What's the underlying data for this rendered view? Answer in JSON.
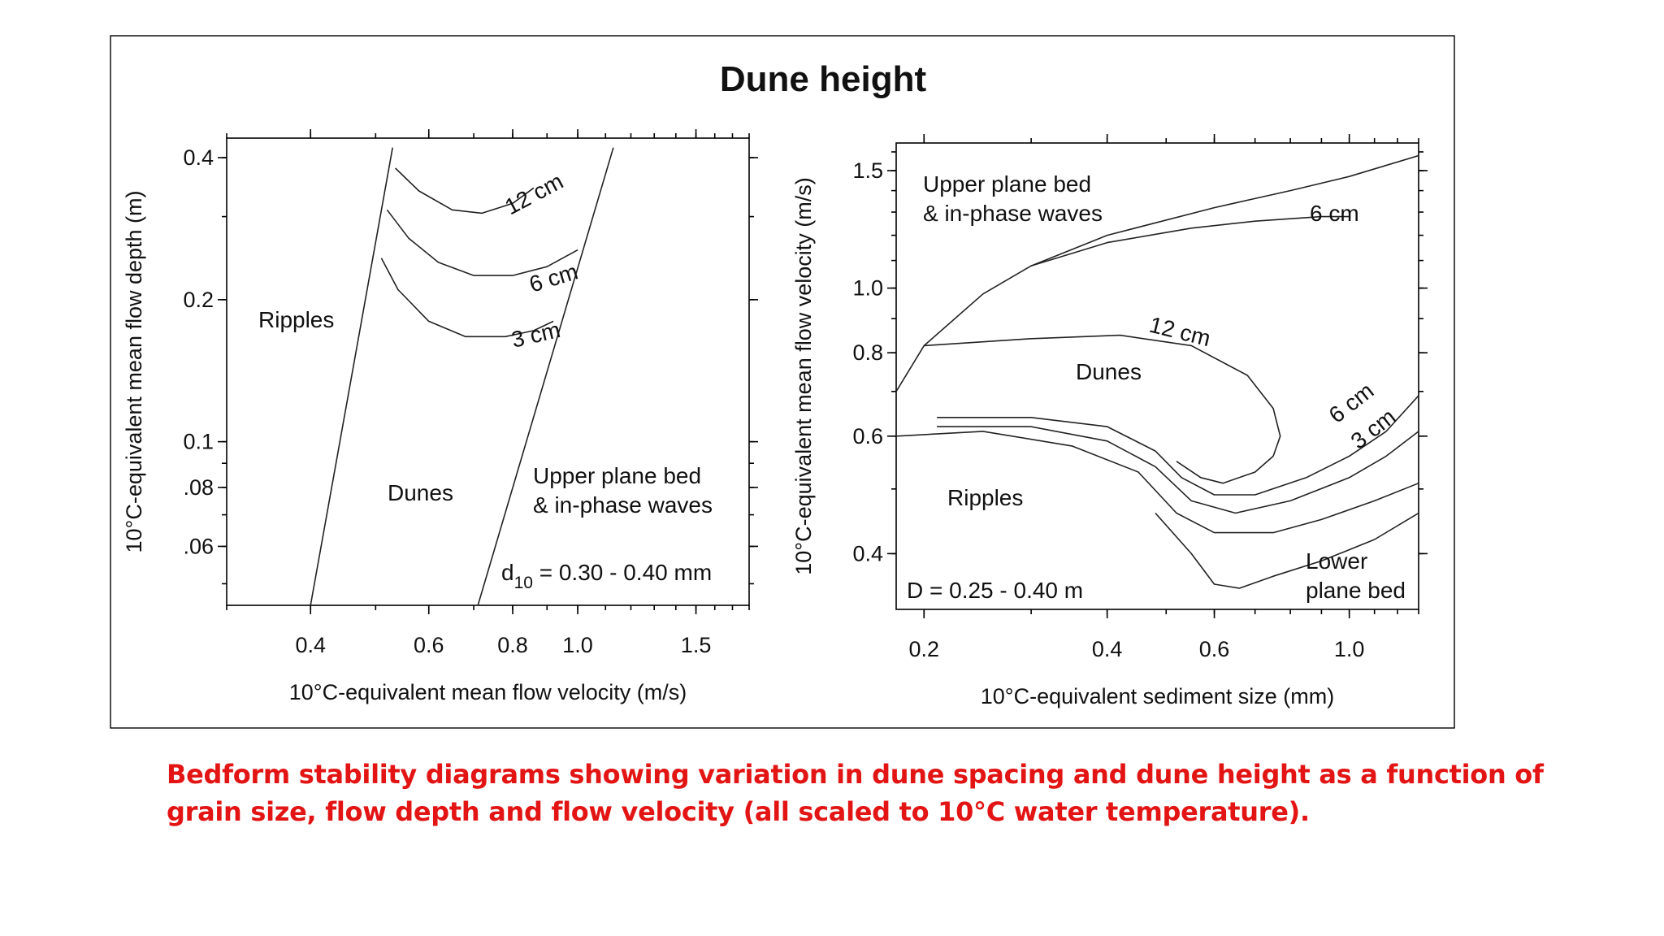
{
  "figure": {
    "title": "Dune height",
    "caption": "Bedform stability diagrams showing variation in dune spacing and dune height as a function of grain size, flow depth and flow velocity (all scaled to 10°C water temperature)."
  },
  "chart_data": [
    {
      "type": "line",
      "scale": "log-log",
      "xlabel": "10°C-equivalent mean flow velocity (m/s)",
      "ylabel": "10°C-equivalent mean flow depth (m)",
      "xlim": [
        0.3,
        1.8
      ],
      "ylim": [
        0.045,
        0.44
      ],
      "xticks": [
        "0.4",
        "0.6",
        "0.8",
        "1.0",
        "1.5"
      ],
      "yticks": [
        "0.4",
        "0.2",
        "0.1",
        ".08",
        ".06"
      ],
      "regions": [
        "Ripples",
        "Dunes",
        "Upper plane bed",
        "& in-phase waves"
      ],
      "annotation": {
        "prefix": "d",
        "sub": "10",
        "suffix": " = 0.30 - 0.40 mm"
      },
      "series": [
        {
          "kind": "boundary",
          "points": [
            [
              0.4,
              0.045
            ],
            [
              0.53,
              0.42
            ]
          ]
        },
        {
          "kind": "boundary",
          "points": [
            [
              0.71,
              0.045
            ],
            [
              1.13,
              0.42
            ]
          ]
        },
        {
          "name": "12 cm",
          "points": [
            [
              0.535,
              0.38
            ],
            [
              0.58,
              0.34
            ],
            [
              0.65,
              0.31
            ],
            [
              0.72,
              0.305
            ],
            [
              0.8,
              0.32
            ],
            [
              0.86,
              0.345
            ]
          ]
        },
        {
          "name": "6 cm",
          "points": [
            [
              0.52,
              0.31
            ],
            [
              0.56,
              0.27
            ],
            [
              0.62,
              0.24
            ],
            [
              0.7,
              0.225
            ],
            [
              0.8,
              0.225
            ],
            [
              0.9,
              0.235
            ],
            [
              1.0,
              0.255
            ]
          ]
        },
        {
          "name": "3 cm",
          "points": [
            [
              0.51,
              0.245
            ],
            [
              0.54,
              0.21
            ],
            [
              0.6,
              0.18
            ],
            [
              0.68,
              0.167
            ],
            [
              0.78,
              0.167
            ],
            [
              0.86,
              0.172
            ],
            [
              0.92,
              0.18
            ]
          ]
        }
      ]
    },
    {
      "type": "line",
      "scale": "log-log",
      "xlabel": "10°C-equivalent sediment size (mm)",
      "ylabel": "10°C-equivalent mean flow velocity (m/s)",
      "xlim": [
        0.18,
        1.3
      ],
      "ylim": [
        0.33,
        1.65
      ],
      "xticks": [
        "0.2",
        "0.4",
        "0.6",
        "1.0"
      ],
      "yticks": [
        "1.5",
        "1.0",
        "0.8",
        "0.6",
        "0.4"
      ],
      "regions": [
        "Upper plane bed",
        "& in-phase waves",
        "Dunes",
        "Ripples",
        "Lower",
        "plane bed"
      ],
      "annotation": "D = 0.25 - 0.40 m",
      "series": [
        {
          "kind": "boundary",
          "points": [
            [
              0.18,
              0.7
            ],
            [
              0.2,
              0.82
            ],
            [
              0.25,
              0.98
            ],
            [
              0.3,
              1.08
            ],
            [
              0.4,
              1.2
            ],
            [
              0.6,
              1.32
            ],
            [
              0.8,
              1.4
            ],
            [
              1.0,
              1.47
            ],
            [
              1.3,
              1.58
            ]
          ]
        },
        {
          "name": "6 cm",
          "points": [
            [
              0.3,
              1.08
            ],
            [
              0.4,
              1.17
            ],
            [
              0.55,
              1.23
            ],
            [
              0.7,
              1.26
            ],
            [
              0.9,
              1.28
            ],
            [
              1.0,
              1.28
            ]
          ]
        },
        {
          "name": "12 cm",
          "points": [
            [
              0.2,
              0.82
            ],
            [
              0.3,
              0.84
            ],
            [
              0.42,
              0.85
            ],
            [
              0.55,
              0.82
            ],
            [
              0.68,
              0.74
            ],
            [
              0.75,
              0.66
            ],
            [
              0.77,
              0.6
            ],
            [
              0.75,
              0.56
            ],
            [
              0.7,
              0.53
            ],
            [
              0.62,
              0.51
            ],
            [
              0.57,
              0.52
            ],
            [
              0.52,
              0.55
            ]
          ]
        },
        {
          "name": "6 cm",
          "points": [
            [
              0.21,
              0.64
            ],
            [
              0.3,
              0.64
            ],
            [
              0.4,
              0.62
            ],
            [
              0.48,
              0.57
            ],
            [
              0.53,
              0.52
            ],
            [
              0.6,
              0.49
            ],
            [
              0.7,
              0.49
            ],
            [
              0.85,
              0.52
            ],
            [
              1.0,
              0.56
            ],
            [
              1.15,
              0.61
            ],
            [
              1.3,
              0.69
            ]
          ]
        },
        {
          "name": "3 cm",
          "points": [
            [
              0.21,
              0.62
            ],
            [
              0.3,
              0.62
            ],
            [
              0.4,
              0.59
            ],
            [
              0.48,
              0.54
            ],
            [
              0.55,
              0.48
            ],
            [
              0.65,
              0.46
            ],
            [
              0.8,
              0.48
            ],
            [
              1.0,
              0.52
            ],
            [
              1.15,
              0.56
            ],
            [
              1.3,
              0.61
            ]
          ]
        },
        {
          "kind": "boundary",
          "points": [
            [
              0.18,
              0.6
            ],
            [
              0.25,
              0.61
            ],
            [
              0.35,
              0.58
            ],
            [
              0.45,
              0.53
            ],
            [
              0.52,
              0.46
            ],
            [
              0.6,
              0.43
            ],
            [
              0.75,
              0.43
            ],
            [
              0.9,
              0.45
            ],
            [
              1.1,
              0.48
            ],
            [
              1.3,
              0.51
            ]
          ]
        },
        {
          "kind": "boundary",
          "points": [
            [
              0.48,
              0.46
            ],
            [
              0.55,
              0.4
            ],
            [
              0.6,
              0.36
            ],
            [
              0.66,
              0.355
            ],
            [
              0.75,
              0.37
            ],
            [
              0.9,
              0.39
            ],
            [
              1.1,
              0.42
            ],
            [
              1.3,
              0.46
            ]
          ]
        }
      ]
    }
  ]
}
